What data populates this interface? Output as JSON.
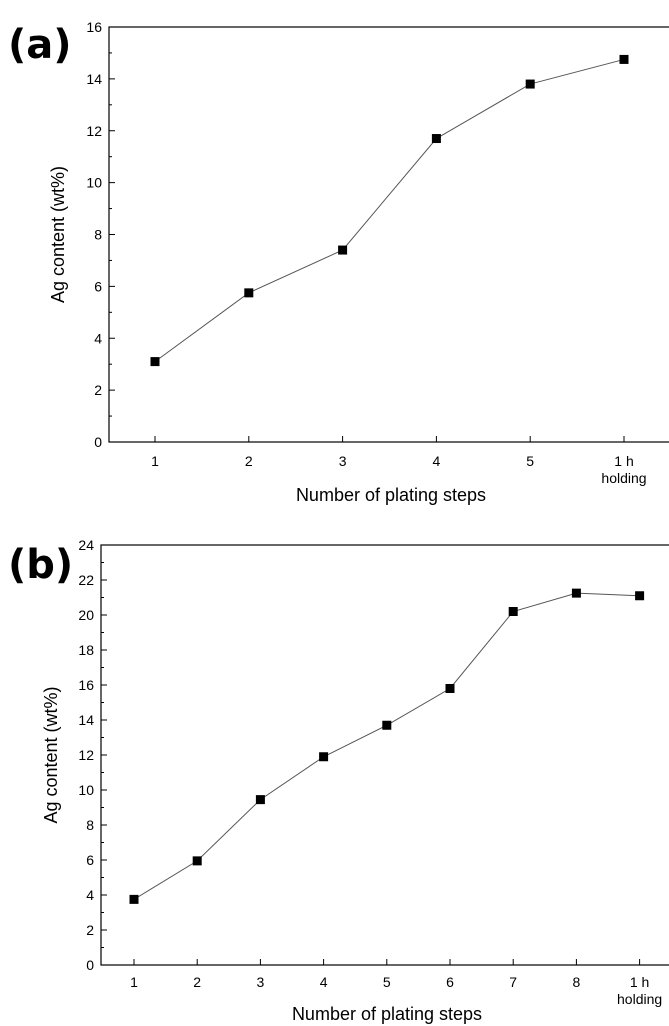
{
  "chart_data": [
    {
      "panel_label": "(a)",
      "type": "line",
      "xlabel": "Number of plating steps",
      "ylabel": "Ag content (wt%)",
      "categories": [
        "1",
        "2",
        "3",
        "4",
        "5",
        "1 h holding"
      ],
      "category_lines": [
        [
          "1"
        ],
        [
          "2"
        ],
        [
          "3"
        ],
        [
          "4"
        ],
        [
          "5"
        ],
        [
          "1 h",
          "holding"
        ]
      ],
      "values": [
        3.1,
        5.75,
        7.4,
        11.7,
        13.8,
        14.75
      ],
      "ylim": [
        0,
        16
      ],
      "yticks": [
        0,
        2,
        4,
        6,
        8,
        10,
        12,
        14,
        16
      ],
      "grid": false,
      "marker": "square"
    },
    {
      "panel_label": "(b)",
      "type": "line",
      "xlabel": "Number of plating steps",
      "ylabel": "Ag content (wt%)",
      "categories": [
        "1",
        "2",
        "3",
        "4",
        "5",
        "6",
        "7",
        "8",
        "1 h holding"
      ],
      "category_lines": [
        [
          "1"
        ],
        [
          "2"
        ],
        [
          "3"
        ],
        [
          "4"
        ],
        [
          "5"
        ],
        [
          "6"
        ],
        [
          "7"
        ],
        [
          "8"
        ],
        [
          "1 h",
          "holding"
        ]
      ],
      "values": [
        3.75,
        5.95,
        9.45,
        11.9,
        13.7,
        15.8,
        20.2,
        21.25,
        21.1
      ],
      "ylim": [
        0,
        24
      ],
      "yticks": [
        0,
        2,
        4,
        6,
        8,
        10,
        12,
        14,
        16,
        18,
        20,
        22,
        24
      ],
      "grid": false,
      "marker": "square"
    }
  ]
}
